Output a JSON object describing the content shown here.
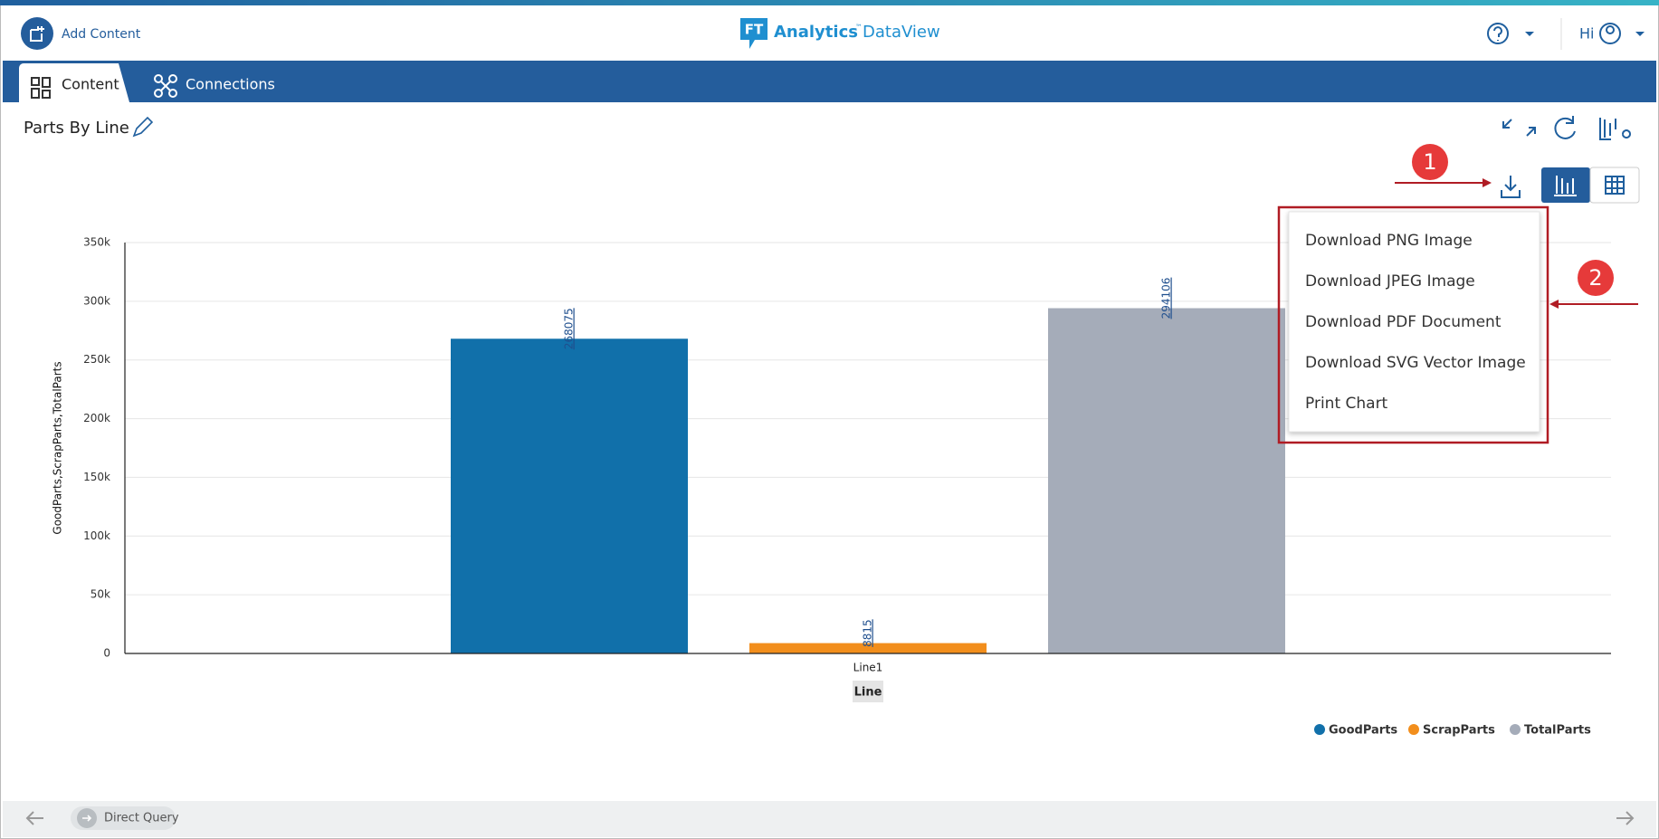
{
  "header": {
    "add_content": "Add Content",
    "logo_mark": "FT",
    "brand": "Analytics",
    "trademark": "™",
    "product": "DataView",
    "greeting": "Hi"
  },
  "tabs": [
    "Content",
    "Connections"
  ],
  "panel": {
    "title": "Parts By Line"
  },
  "annotations": [
    "1",
    "2"
  ],
  "menu": {
    "items": [
      "Download PNG Image",
      "Download JPEG Image",
      "Download PDF Document",
      "Download SVG Vector Image",
      "Print Chart"
    ]
  },
  "footer": {
    "mode": "Direct Query"
  },
  "chart_data": {
    "type": "bar",
    "categories": [
      "Line1"
    ],
    "x_label": "Line",
    "y_label": "GoodParts,ScrapParts,TotalParts",
    "series": [
      {
        "name": "GoodParts",
        "color": "#1170aa",
        "values": [
          268075
        ]
      },
      {
        "name": "ScrapParts",
        "color": "#f28e1c",
        "values": [
          8815
        ]
      },
      {
        "name": "TotalParts",
        "color": "#a5acb9",
        "values": [
          294106
        ]
      }
    ],
    "ylim": [
      0,
      350000
    ],
    "yticks": [
      0,
      {
        "value": 50000,
        "label": "50k"
      },
      {
        "value": 100000,
        "label": "100k"
      },
      {
        "value": 150000,
        "label": "150k"
      },
      {
        "value": 200000,
        "label": "200k"
      },
      {
        "value": 250000,
        "label": "250k"
      },
      {
        "value": 300000,
        "label": "300k"
      },
      {
        "value": 350000,
        "label": "350k"
      }
    ],
    "grid": true,
    "legend": "bottom-right"
  }
}
